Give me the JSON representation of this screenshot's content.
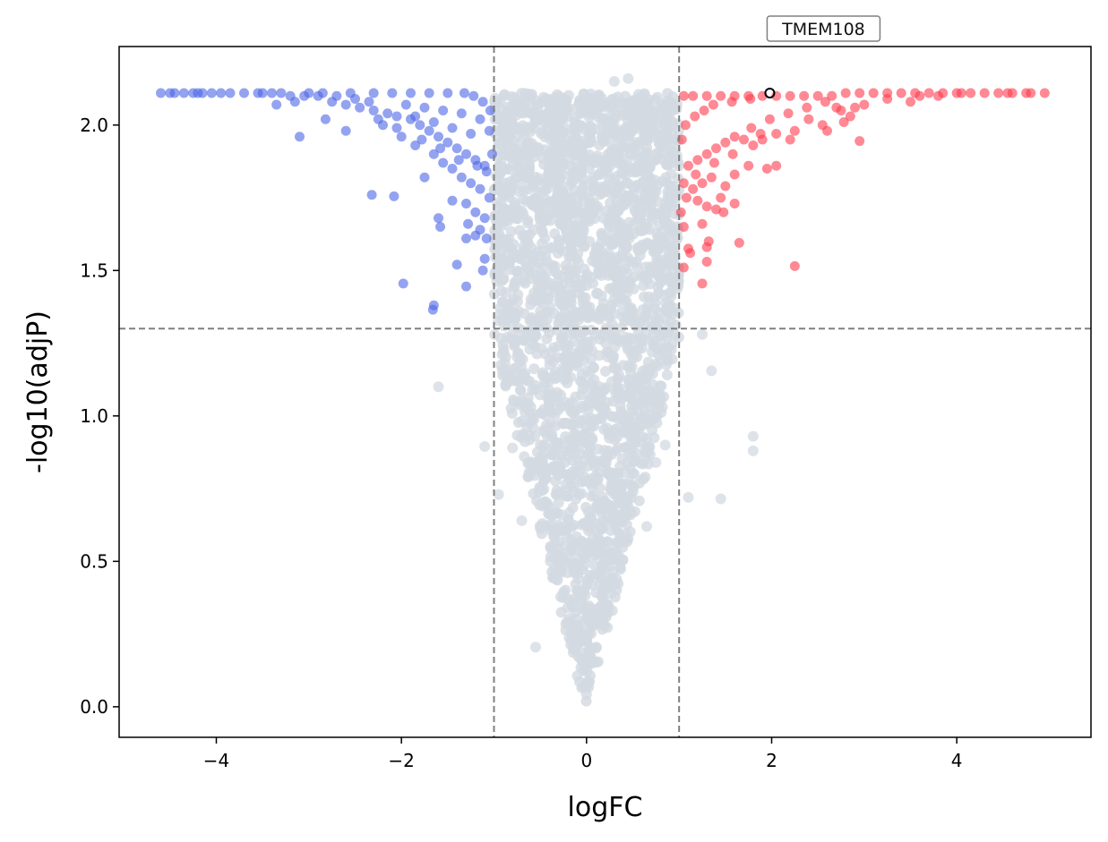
{
  "chart_data": {
    "type": "scatter",
    "title": "",
    "xlabel": "logFC",
    "ylabel": "-log10(adjP)",
    "xlim": [
      -5.05,
      5.45
    ],
    "ylim": [
      -0.105,
      2.27
    ],
    "xticks": [
      -4,
      -2,
      0,
      2,
      4
    ],
    "xtick_labels": [
      "−4",
      "−2",
      "0",
      "2",
      "4"
    ],
    "yticks": [
      0.0,
      0.5,
      1.0,
      1.5,
      2.0
    ],
    "ytick_labels": [
      "0.0",
      "0.5",
      "1.0",
      "1.5",
      "2.0"
    ],
    "grid": false,
    "legend": "none",
    "thresholds": {
      "logFC": [
        -1,
        1
      ],
      "neg_log10_adjP": 1.3
    },
    "colors": {
      "down": "#4d66e6",
      "up": "#ff3a4c",
      "ns": "#d3dae1",
      "threshold_line": "#808080",
      "highlight_edge": "#000000"
    },
    "series": [
      {
        "group": "down",
        "points": [
          [
            -4.6,
            2.11
          ],
          [
            -4.5,
            2.11
          ],
          [
            -4.45,
            2.11
          ],
          [
            -4.35,
            2.11
          ],
          [
            -4.25,
            2.11
          ],
          [
            -4.15,
            2.11
          ],
          [
            -3.95,
            2.11
          ],
          [
            -3.85,
            2.11
          ],
          [
            -3.7,
            2.11
          ],
          [
            -3.55,
            2.11
          ],
          [
            -3.4,
            2.11
          ],
          [
            -3.2,
            2.1
          ],
          [
            -3.05,
            2.1
          ],
          [
            -2.9,
            2.1
          ],
          [
            -2.75,
            2.08
          ],
          [
            -2.6,
            2.07
          ],
          [
            -2.45,
            2.06
          ],
          [
            -2.3,
            2.05
          ],
          [
            -2.15,
            2.04
          ],
          [
            -2.05,
            2.03
          ],
          [
            -1.9,
            2.02
          ],
          [
            -1.8,
            2.0
          ],
          [
            -1.7,
            1.98
          ],
          [
            -1.6,
            1.96
          ],
          [
            -1.5,
            1.94
          ],
          [
            -1.4,
            1.92
          ],
          [
            -1.3,
            1.9
          ],
          [
            -1.2,
            1.88
          ],
          [
            -1.1,
            1.86
          ],
          [
            -3.35,
            2.07
          ],
          [
            -3.15,
            2.08
          ],
          [
            -2.82,
            2.02
          ],
          [
            -2.6,
            1.98
          ],
          [
            -3.1,
            1.96
          ],
          [
            -2.2,
            2.0
          ],
          [
            -2.0,
            1.96
          ],
          [
            -1.85,
            1.93
          ],
          [
            -1.65,
            1.9
          ],
          [
            -1.55,
            1.87
          ],
          [
            -1.45,
            1.85
          ],
          [
            -1.35,
            1.82
          ],
          [
            -1.25,
            1.8
          ],
          [
            -1.15,
            1.78
          ],
          [
            -1.05,
            1.75
          ],
          [
            -2.32,
            1.76
          ],
          [
            -2.08,
            1.755
          ],
          [
            -1.75,
            1.82
          ],
          [
            -1.45,
            1.74
          ],
          [
            -1.3,
            1.73
          ],
          [
            -1.2,
            1.7
          ],
          [
            -1.1,
            1.68
          ],
          [
            -1.6,
            1.68
          ],
          [
            -1.58,
            1.65
          ],
          [
            -1.28,
            1.66
          ],
          [
            -1.15,
            1.64
          ],
          [
            -1.3,
            1.61
          ],
          [
            -1.2,
            1.62
          ],
          [
            -1.08,
            1.61
          ],
          [
            -1.4,
            1.52
          ],
          [
            -1.1,
            1.54
          ],
          [
            -1.12,
            1.5
          ],
          [
            -1.98,
            1.455
          ],
          [
            -1.3,
            1.445
          ],
          [
            -1.65,
            1.38
          ],
          [
            -1.66,
            1.365
          ],
          [
            -2.7,
            2.1
          ],
          [
            -2.5,
            2.09
          ],
          [
            -2.35,
            2.08
          ],
          [
            -1.95,
            2.07
          ],
          [
            -1.75,
            2.06
          ],
          [
            -1.55,
            2.05
          ],
          [
            -1.35,
            2.04
          ],
          [
            -1.15,
            2.02
          ],
          [
            -1.05,
            1.98
          ],
          [
            -1.25,
            1.97
          ],
          [
            -1.45,
            1.99
          ],
          [
            -1.65,
            2.01
          ],
          [
            -1.85,
            2.03
          ],
          [
            -2.05,
            1.99
          ],
          [
            -2.25,
            2.02
          ],
          [
            -1.02,
            1.9
          ],
          [
            -1.08,
            1.84
          ],
          [
            -1.18,
            1.86
          ],
          [
            -1.38,
            1.88
          ],
          [
            -1.58,
            1.92
          ],
          [
            -1.78,
            1.95
          ],
          [
            -1.04,
            2.05
          ],
          [
            -1.12,
            2.08
          ],
          [
            -1.22,
            2.1
          ],
          [
            -1.32,
            2.11
          ],
          [
            -1.5,
            2.11
          ],
          [
            -1.7,
            2.11
          ],
          [
            -1.9,
            2.11
          ],
          [
            -2.1,
            2.11
          ],
          [
            -2.3,
            2.11
          ],
          [
            -2.55,
            2.11
          ],
          [
            -2.85,
            2.11
          ],
          [
            -3.0,
            2.11
          ],
          [
            -3.3,
            2.11
          ],
          [
            -3.5,
            2.11
          ],
          [
            -4.05,
            2.11
          ],
          [
            -4.2,
            2.11
          ]
        ]
      },
      {
        "group": "up",
        "points": [
          [
            4.95,
            2.11
          ],
          [
            4.8,
            2.11
          ],
          [
            4.75,
            2.11
          ],
          [
            4.6,
            2.11
          ],
          [
            4.55,
            2.11
          ],
          [
            4.3,
            2.11
          ],
          [
            4.15,
            2.11
          ],
          [
            4.0,
            2.11
          ],
          [
            3.85,
            2.11
          ],
          [
            3.7,
            2.11
          ],
          [
            3.55,
            2.11
          ],
          [
            3.4,
            2.11
          ],
          [
            3.25,
            2.11
          ],
          [
            3.1,
            2.11
          ],
          [
            2.95,
            2.11
          ],
          [
            2.8,
            2.11
          ],
          [
            2.65,
            2.1
          ],
          [
            2.5,
            2.1
          ],
          [
            2.35,
            2.1
          ],
          [
            2.2,
            2.1
          ],
          [
            2.05,
            2.1
          ],
          [
            1.9,
            2.1
          ],
          [
            1.75,
            2.1
          ],
          [
            1.6,
            2.1
          ],
          [
            1.45,
            2.1
          ],
          [
            1.3,
            2.1
          ],
          [
            1.15,
            2.1
          ],
          [
            1.05,
            2.1
          ],
          [
            3.25,
            2.09
          ],
          [
            3.0,
            2.07
          ],
          [
            2.9,
            2.06
          ],
          [
            2.75,
            2.05
          ],
          [
            2.85,
            2.03
          ],
          [
            2.78,
            2.01
          ],
          [
            2.55,
            2.0
          ],
          [
            2.6,
            1.98
          ],
          [
            2.25,
            1.98
          ],
          [
            2.95,
            1.945
          ],
          [
            2.2,
            1.95
          ],
          [
            2.05,
            1.97
          ],
          [
            1.9,
            1.95
          ],
          [
            1.8,
            1.93
          ],
          [
            1.7,
            1.95
          ],
          [
            1.6,
            1.96
          ],
          [
            1.5,
            1.94
          ],
          [
            1.4,
            1.92
          ],
          [
            1.3,
            1.9
          ],
          [
            1.2,
            1.88
          ],
          [
            1.1,
            1.86
          ],
          [
            2.05,
            1.86
          ],
          [
            1.95,
            1.85
          ],
          [
            1.75,
            1.86
          ],
          [
            1.6,
            1.83
          ],
          [
            1.5,
            1.79
          ],
          [
            1.35,
            1.82
          ],
          [
            1.25,
            1.8
          ],
          [
            1.15,
            1.78
          ],
          [
            1.05,
            1.8
          ],
          [
            1.45,
            1.75
          ],
          [
            1.3,
            1.72
          ],
          [
            1.2,
            1.74
          ],
          [
            1.4,
            1.71
          ],
          [
            1.48,
            1.7
          ],
          [
            1.6,
            1.73
          ],
          [
            1.25,
            1.66
          ],
          [
            1.05,
            1.65
          ],
          [
            1.65,
            1.595
          ],
          [
            1.32,
            1.6
          ],
          [
            1.1,
            1.575
          ],
          [
            1.12,
            1.56
          ],
          [
            1.3,
            1.58
          ],
          [
            1.05,
            1.51
          ],
          [
            1.3,
            1.53
          ],
          [
            2.25,
            1.515
          ],
          [
            1.25,
            1.455
          ],
          [
            1.02,
            1.7
          ],
          [
            1.08,
            1.75
          ],
          [
            1.18,
            1.83
          ],
          [
            1.38,
            1.87
          ],
          [
            1.58,
            1.9
          ],
          [
            1.78,
            1.99
          ],
          [
            1.98,
            2.02
          ],
          [
            2.18,
            2.04
          ],
          [
            2.38,
            2.06
          ],
          [
            2.58,
            2.08
          ],
          [
            1.03,
            1.95
          ],
          [
            1.07,
            2.0
          ],
          [
            1.17,
            2.03
          ],
          [
            1.27,
            2.05
          ],
          [
            1.37,
            2.07
          ],
          [
            1.57,
            2.08
          ],
          [
            1.77,
            2.09
          ],
          [
            3.6,
            2.1
          ],
          [
            3.8,
            2.1
          ],
          [
            4.05,
            2.11
          ],
          [
            4.45,
            2.11
          ],
          [
            2.4,
            2.02
          ],
          [
            2.7,
            2.06
          ],
          [
            3.5,
            2.08
          ],
          [
            1.88,
            1.97
          ]
        ]
      },
      {
        "group": "highlight",
        "label": "TMEM108",
        "points": [
          [
            1.98,
            2.11
          ]
        ]
      }
    ]
  }
}
